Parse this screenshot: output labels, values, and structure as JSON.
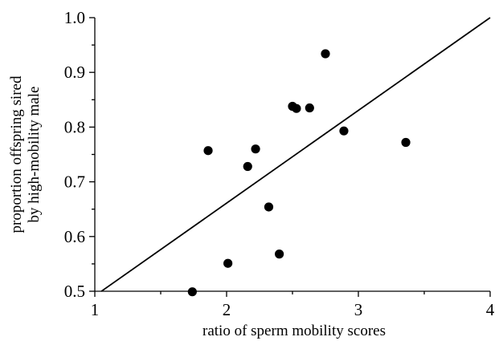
{
  "chart_data": {
    "type": "scatter",
    "title": "",
    "xlabel": "ratio of sperm mobility scores",
    "ylabel_lines": [
      "proportion offspring sired",
      "by high-mobility male"
    ],
    "xlim": [
      1,
      4
    ],
    "ylim": [
      0.5,
      1.0
    ],
    "x_ticks": [
      1,
      2,
      3,
      4
    ],
    "x_tick_labels": [
      "1",
      "2",
      "3",
      "4"
    ],
    "y_ticks": [
      0.5,
      0.6,
      0.7,
      0.8,
      0.9,
      1.0
    ],
    "y_tick_labels": [
      "0.5",
      "0.6",
      "0.7",
      "0.8",
      "0.9",
      "1.0"
    ],
    "x_minor_tick_step": 0.5,
    "y_minor_tick_step": 0.05,
    "grid": false,
    "legend": "none",
    "points": [
      {
        "x": 1.74,
        "y": 0.499
      },
      {
        "x": 1.86,
        "y": 0.757
      },
      {
        "x": 2.01,
        "y": 0.551
      },
      {
        "x": 2.16,
        "y": 0.728
      },
      {
        "x": 2.22,
        "y": 0.76
      },
      {
        "x": 2.32,
        "y": 0.654
      },
      {
        "x": 2.4,
        "y": 0.568
      },
      {
        "x": 2.5,
        "y": 0.838
      },
      {
        "x": 2.53,
        "y": 0.834
      },
      {
        "x": 2.63,
        "y": 0.835
      },
      {
        "x": 2.75,
        "y": 0.934
      },
      {
        "x": 2.89,
        "y": 0.793
      },
      {
        "x": 3.36,
        "y": 0.772
      }
    ],
    "fit_line": {
      "x": [
        1.05,
        4.0
      ],
      "y": [
        0.5,
        1.0
      ]
    }
  }
}
